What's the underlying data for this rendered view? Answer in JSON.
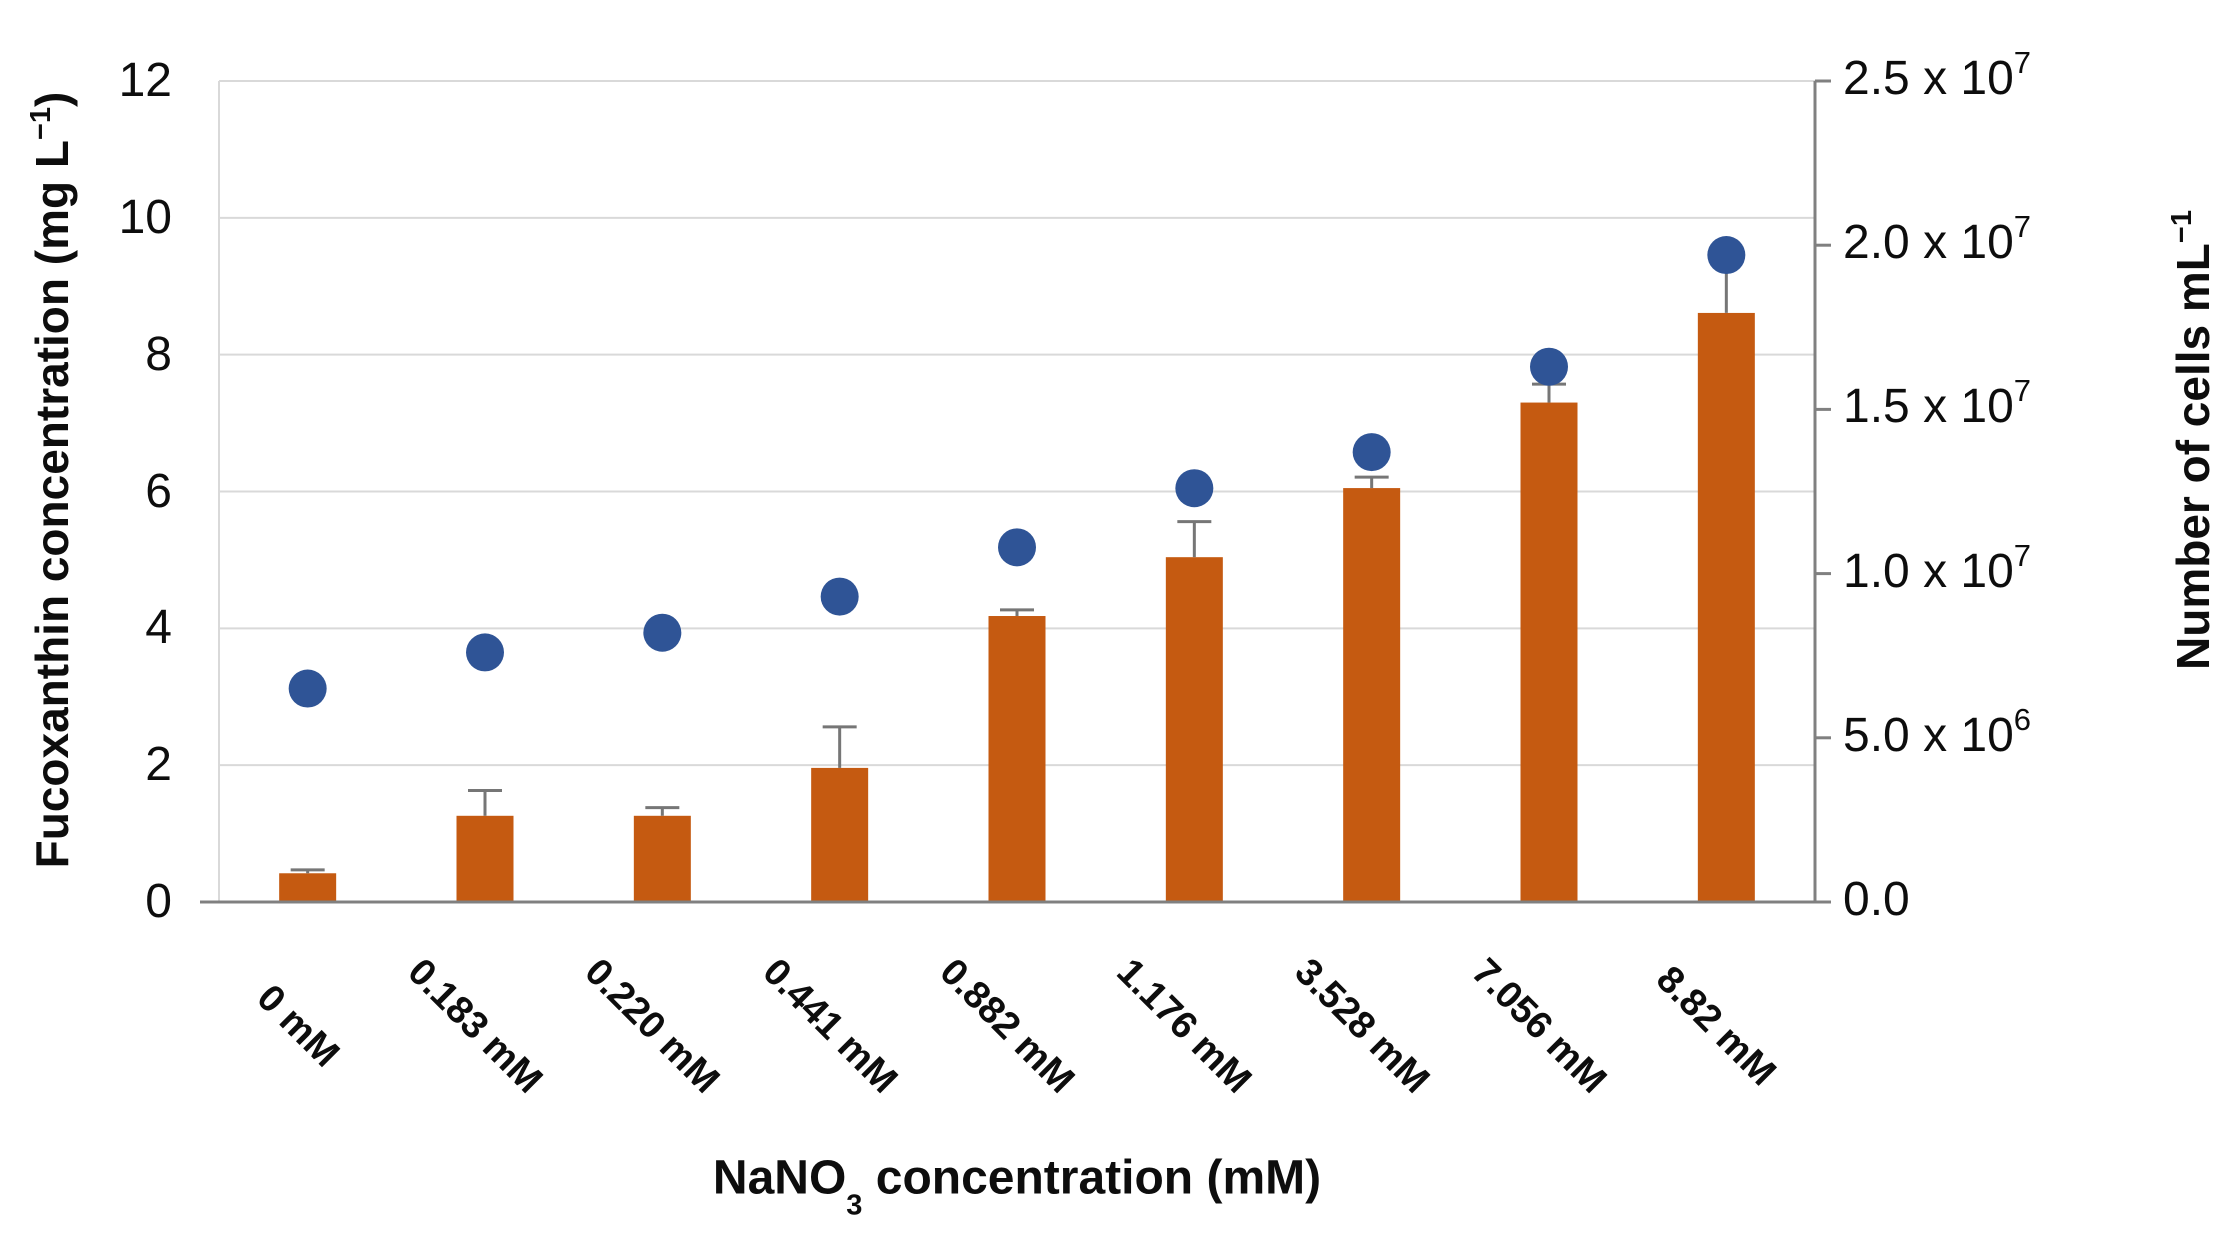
{
  "chart_data": {
    "type": "combo-bar-scatter",
    "title": "",
    "categories": [
      "0 mM",
      "0.183 mM",
      "0.220 mM",
      "0.441 mM",
      "0.882 mM",
      "1.176 mM",
      "3.528 mM",
      "7.056 mM",
      "8.82 mM"
    ],
    "series": [
      {
        "name": "Fucoxanthin concentration (mg L-1)",
        "type": "bar",
        "axis": "left",
        "color": "#C55A11",
        "values": [
          0.42,
          1.26,
          1.26,
          1.96,
          4.18,
          5.04,
          6.05,
          7.3,
          8.61
        ],
        "errors_plus": [
          0.05,
          0.37,
          0.12,
          0.6,
          0.09,
          0.52,
          0.16,
          0.27,
          0.95
        ]
      },
      {
        "name": "Number of cells mL-1",
        "type": "scatter",
        "axis": "right",
        "color": "#2F5496",
        "values": [
          6500000,
          7600000,
          8200000,
          9300000,
          10800000,
          12600000,
          13700000,
          16300000,
          19700000
        ]
      }
    ],
    "left_axis": {
      "title_segments": [
        {
          "t": "Fucoxanthin concentration (mg L"
        },
        {
          "sup": "−1"
        },
        {
          "t": ")"
        }
      ],
      "tick_values": [
        0,
        2,
        4,
        6,
        8,
        10,
        12
      ],
      "tick_labels": [
        "0",
        "2",
        "4",
        "6",
        "8",
        "10",
        "12"
      ],
      "min": 0,
      "max": 12
    },
    "right_axis": {
      "title_segments": [
        {
          "t": "Number of cells mL"
        },
        {
          "sup": "−1"
        }
      ],
      "tick_values": [
        0,
        5000000,
        10000000,
        15000000,
        20000000,
        25000000
      ],
      "tick_labels": [
        "0.0",
        "5.0 x 10^6",
        "1.0 x 10^7",
        "1.5 x 10^7",
        "2.0 x 10^7",
        "2.5 x 10^7"
      ],
      "min": 0,
      "max": 25000000
    },
    "x_axis": {
      "title_segments": [
        {
          "t": "NaNO"
        },
        {
          "sub": "3"
        },
        {
          "t": " concentration (mM)"
        }
      ]
    },
    "grid": true,
    "legend": "none",
    "colors": {
      "bar": "#C55A11",
      "dot": "#2F5496",
      "gridline": "#D9D9D9",
      "axis_line": "#808080",
      "plot_border": "#D9D9D9",
      "error_bar": "#767676",
      "text": "#0d0d0d",
      "background": "#FFFFFF"
    }
  }
}
